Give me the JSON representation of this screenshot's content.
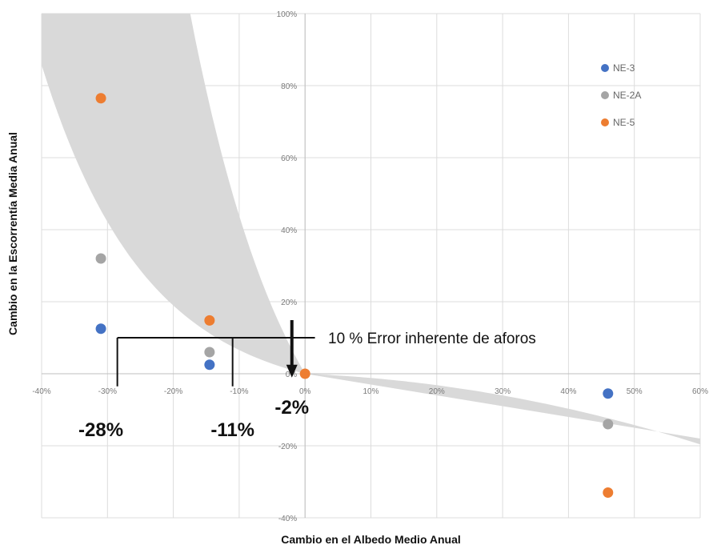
{
  "chart_data": {
    "type": "scatter",
    "xlabel": "Cambio en el Albedo Medio Anual",
    "ylabel": "Cambio en la Escorrentía Media Anual",
    "xlim": [
      -0.4,
      0.6
    ],
    "ylim": [
      -0.4,
      1.0
    ],
    "x_ticks": [
      {
        "value": -0.4,
        "label": "-40%"
      },
      {
        "value": -0.3,
        "label": "-30%"
      },
      {
        "value": -0.2,
        "label": "-20%"
      },
      {
        "value": -0.1,
        "label": "-10%"
      },
      {
        "value": 0.0,
        "label": "0%"
      },
      {
        "value": 0.1,
        "label": "10%"
      },
      {
        "value": 0.2,
        "label": "20%"
      },
      {
        "value": 0.3,
        "label": "30%"
      },
      {
        "value": 0.4,
        "label": "40%"
      },
      {
        "value": 0.5,
        "label": "50%"
      },
      {
        "value": 0.6,
        "label": "60%"
      }
    ],
    "y_ticks": [
      {
        "value": 1.0,
        "label": "100%"
      },
      {
        "value": 0.8,
        "label": "80%"
      },
      {
        "value": 0.6,
        "label": "60%"
      },
      {
        "value": 0.4,
        "label": "40%"
      },
      {
        "value": 0.2,
        "label": "20%"
      },
      {
        "value": 0.0,
        "label": "0%"
      },
      {
        "value": -0.2,
        "label": "-20%"
      },
      {
        "value": -0.4,
        "label": "-40%"
      }
    ],
    "grid": true,
    "legend_position": "top-right",
    "series": [
      {
        "name": "NE-3",
        "color": "#4472c4",
        "points": [
          [
            -0.31,
            0.125
          ],
          [
            -0.145,
            0.025
          ],
          [
            0.46,
            -0.055
          ]
        ]
      },
      {
        "name": "NE-2A",
        "color": "#a5a5a5",
        "points": [
          [
            -0.31,
            0.32
          ],
          [
            -0.145,
            0.06
          ],
          [
            0.46,
            -0.14
          ]
        ]
      },
      {
        "name": "NE-5",
        "color": "#ed7d31",
        "points": [
          [
            -0.31,
            0.765
          ],
          [
            -0.145,
            0.148
          ],
          [
            0.0,
            0.0
          ],
          [
            0.46,
            -0.33
          ]
        ]
      }
    ],
    "annotations": {
      "error_level": 0.1,
      "error_text": "10 %  Error inherente de aforos",
      "intercepts": [
        {
          "x": -0.28,
          "label": "-28%"
        },
        {
          "x": -0.11,
          "label": "-11%"
        },
        {
          "x": -0.02,
          "label": "-2%"
        }
      ]
    },
    "band_color": "#d9d9d9"
  }
}
